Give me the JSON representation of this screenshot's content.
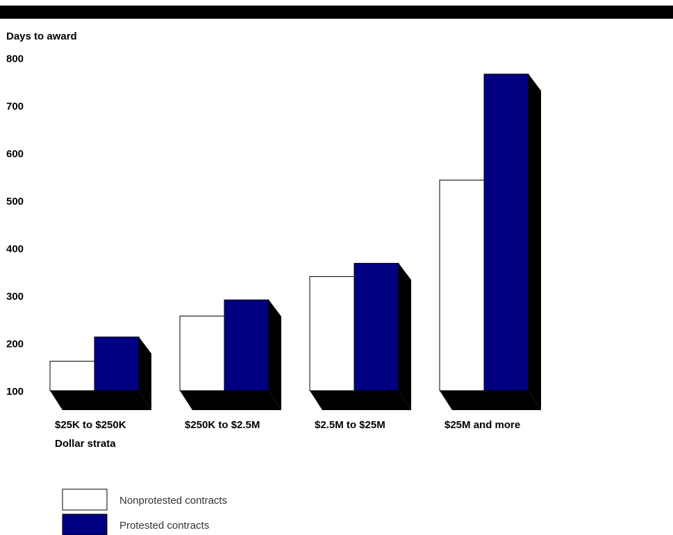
{
  "chart_data": {
    "type": "bar",
    "ylabel": "Days to award",
    "xlabel": "Dollar strata",
    "ylim": [
      100,
      800
    ],
    "yticks": [
      100,
      200,
      300,
      400,
      500,
      600,
      700,
      800
    ],
    "categories": [
      "$25K to $250K",
      "$250K to $2.5M",
      "$2.5M to $25M",
      "$25M and more"
    ],
    "series": [
      {
        "name": "Nonprotested contracts",
        "color": "#ffffff",
        "values": [
          162,
          257,
          340,
          543
        ]
      },
      {
        "name": "Protested contracts",
        "color": "#000080",
        "values": [
          213,
          291,
          368,
          766
        ]
      }
    ],
    "grid": false,
    "legend_placement": "bottom-left",
    "style": "3d-shadow"
  }
}
